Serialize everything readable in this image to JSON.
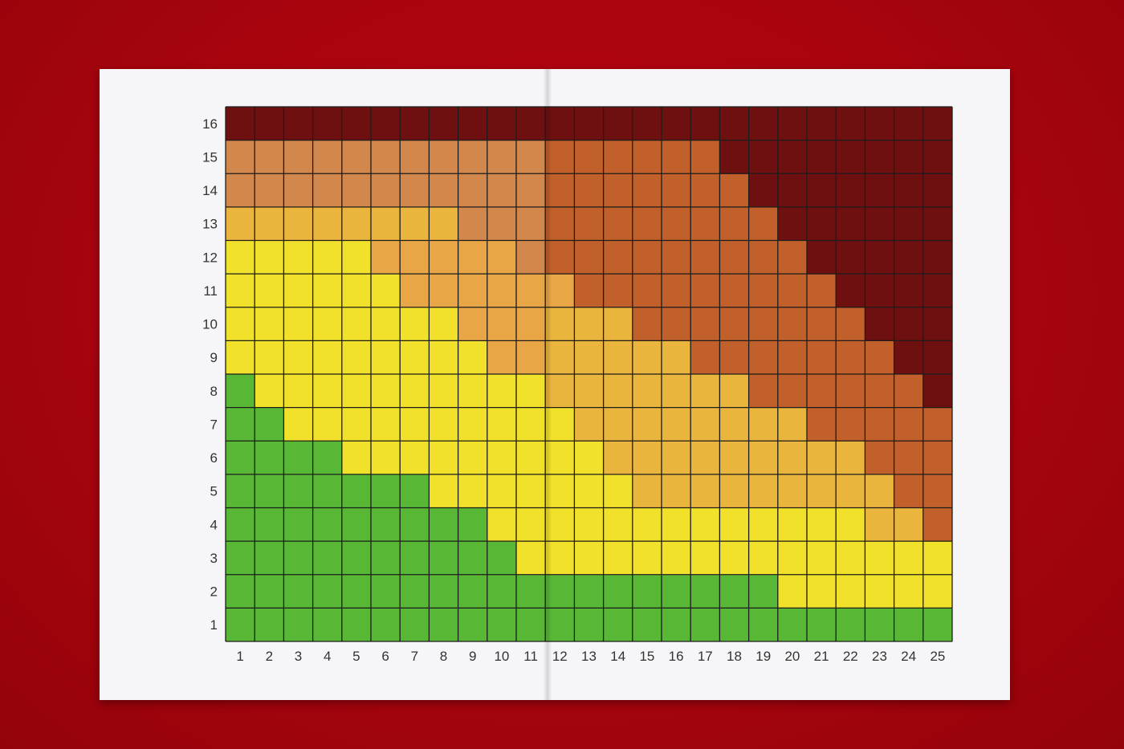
{
  "chart_data": {
    "type": "heatmap",
    "title": "",
    "xlabel": "",
    "ylabel": "",
    "x_categories": [
      "1",
      "2",
      "3",
      "4",
      "5",
      "6",
      "7",
      "8",
      "9",
      "10",
      "11",
      "12",
      "13",
      "14",
      "15",
      "16",
      "17",
      "18",
      "19",
      "20",
      "21",
      "22",
      "23",
      "24",
      "25"
    ],
    "y_categories": [
      "1",
      "2",
      "3",
      "4",
      "5",
      "6",
      "7",
      "8",
      "9",
      "10",
      "11",
      "12",
      "13",
      "14",
      "15",
      "16"
    ],
    "grid": true,
    "levels": 7,
    "colors": [
      "#58b836",
      "#f2e12a",
      "#eab53c",
      "#e8a646",
      "#d2874c",
      "#c1602a",
      "#6e1010"
    ],
    "values": [
      [
        0,
        0,
        0,
        0,
        0,
        0,
        0,
        0,
        0,
        0,
        0,
        0,
        0,
        0,
        0,
        0,
        0,
        0,
        0,
        0,
        0,
        0,
        0,
        0,
        0
      ],
      [
        0,
        0,
        0,
        0,
        0,
        0,
        0,
        0,
        0,
        0,
        0,
        0,
        0,
        0,
        0,
        0,
        0,
        0,
        0,
        1,
        1,
        1,
        1,
        1,
        1
      ],
      [
        0,
        0,
        0,
        0,
        0,
        0,
        0,
        0,
        0,
        0,
        1,
        1,
        1,
        1,
        1,
        1,
        1,
        1,
        1,
        1,
        1,
        1,
        1,
        1,
        1
      ],
      [
        0,
        0,
        0,
        0,
        0,
        0,
        0,
        0,
        0,
        1,
        1,
        1,
        1,
        1,
        1,
        1,
        1,
        1,
        1,
        1,
        1,
        1,
        2,
        2,
        5
      ],
      [
        0,
        0,
        0,
        0,
        0,
        0,
        0,
        1,
        1,
        1,
        1,
        1,
        1,
        1,
        2,
        2,
        2,
        2,
        2,
        2,
        2,
        2,
        2,
        5,
        5
      ],
      [
        0,
        0,
        0,
        0,
        1,
        1,
        1,
        1,
        1,
        1,
        1,
        1,
        1,
        2,
        2,
        2,
        2,
        2,
        2,
        2,
        2,
        2,
        5,
        5,
        5
      ],
      [
        0,
        0,
        1,
        1,
        1,
        1,
        1,
        1,
        1,
        1,
        1,
        1,
        2,
        2,
        2,
        2,
        2,
        2,
        2,
        2,
        5,
        5,
        5,
        5,
        5
      ],
      [
        0,
        1,
        1,
        1,
        1,
        1,
        1,
        1,
        1,
        1,
        1,
        2,
        2,
        2,
        2,
        2,
        2,
        2,
        5,
        5,
        5,
        5,
        5,
        5,
        6
      ],
      [
        1,
        1,
        1,
        1,
        1,
        1,
        1,
        1,
        1,
        3,
        3,
        2,
        2,
        2,
        2,
        2,
        5,
        5,
        5,
        5,
        5,
        5,
        5,
        6,
        6
      ],
      [
        1,
        1,
        1,
        1,
        1,
        1,
        1,
        1,
        3,
        3,
        3,
        2,
        2,
        2,
        5,
        5,
        5,
        5,
        5,
        5,
        5,
        5,
        6,
        6,
        6
      ],
      [
        1,
        1,
        1,
        1,
        1,
        1,
        3,
        3,
        3,
        3,
        3,
        3,
        5,
        5,
        5,
        5,
        5,
        5,
        5,
        5,
        5,
        6,
        6,
        6,
        6
      ],
      [
        1,
        1,
        1,
        1,
        1,
        3,
        3,
        3,
        3,
        3,
        4,
        5,
        5,
        5,
        5,
        5,
        5,
        5,
        5,
        5,
        6,
        6,
        6,
        6,
        6
      ],
      [
        2,
        2,
        2,
        2,
        2,
        2,
        2,
        2,
        4,
        4,
        4,
        5,
        5,
        5,
        5,
        5,
        5,
        5,
        5,
        6,
        6,
        6,
        6,
        6,
        6
      ],
      [
        4,
        4,
        4,
        4,
        4,
        4,
        4,
        4,
        4,
        4,
        4,
        5,
        5,
        5,
        5,
        5,
        5,
        5,
        6,
        6,
        6,
        6,
        6,
        6,
        6
      ],
      [
        4,
        4,
        4,
        4,
        4,
        4,
        4,
        4,
        4,
        4,
        4,
        5,
        5,
        5,
        5,
        5,
        5,
        6,
        6,
        6,
        6,
        6,
        6,
        6,
        6
      ],
      [
        6,
        6,
        6,
        6,
        6,
        6,
        6,
        6,
        6,
        6,
        6,
        6,
        6,
        6,
        6,
        6,
        6,
        6,
        6,
        6,
        6,
        6,
        6,
        6,
        6
      ]
    ]
  }
}
